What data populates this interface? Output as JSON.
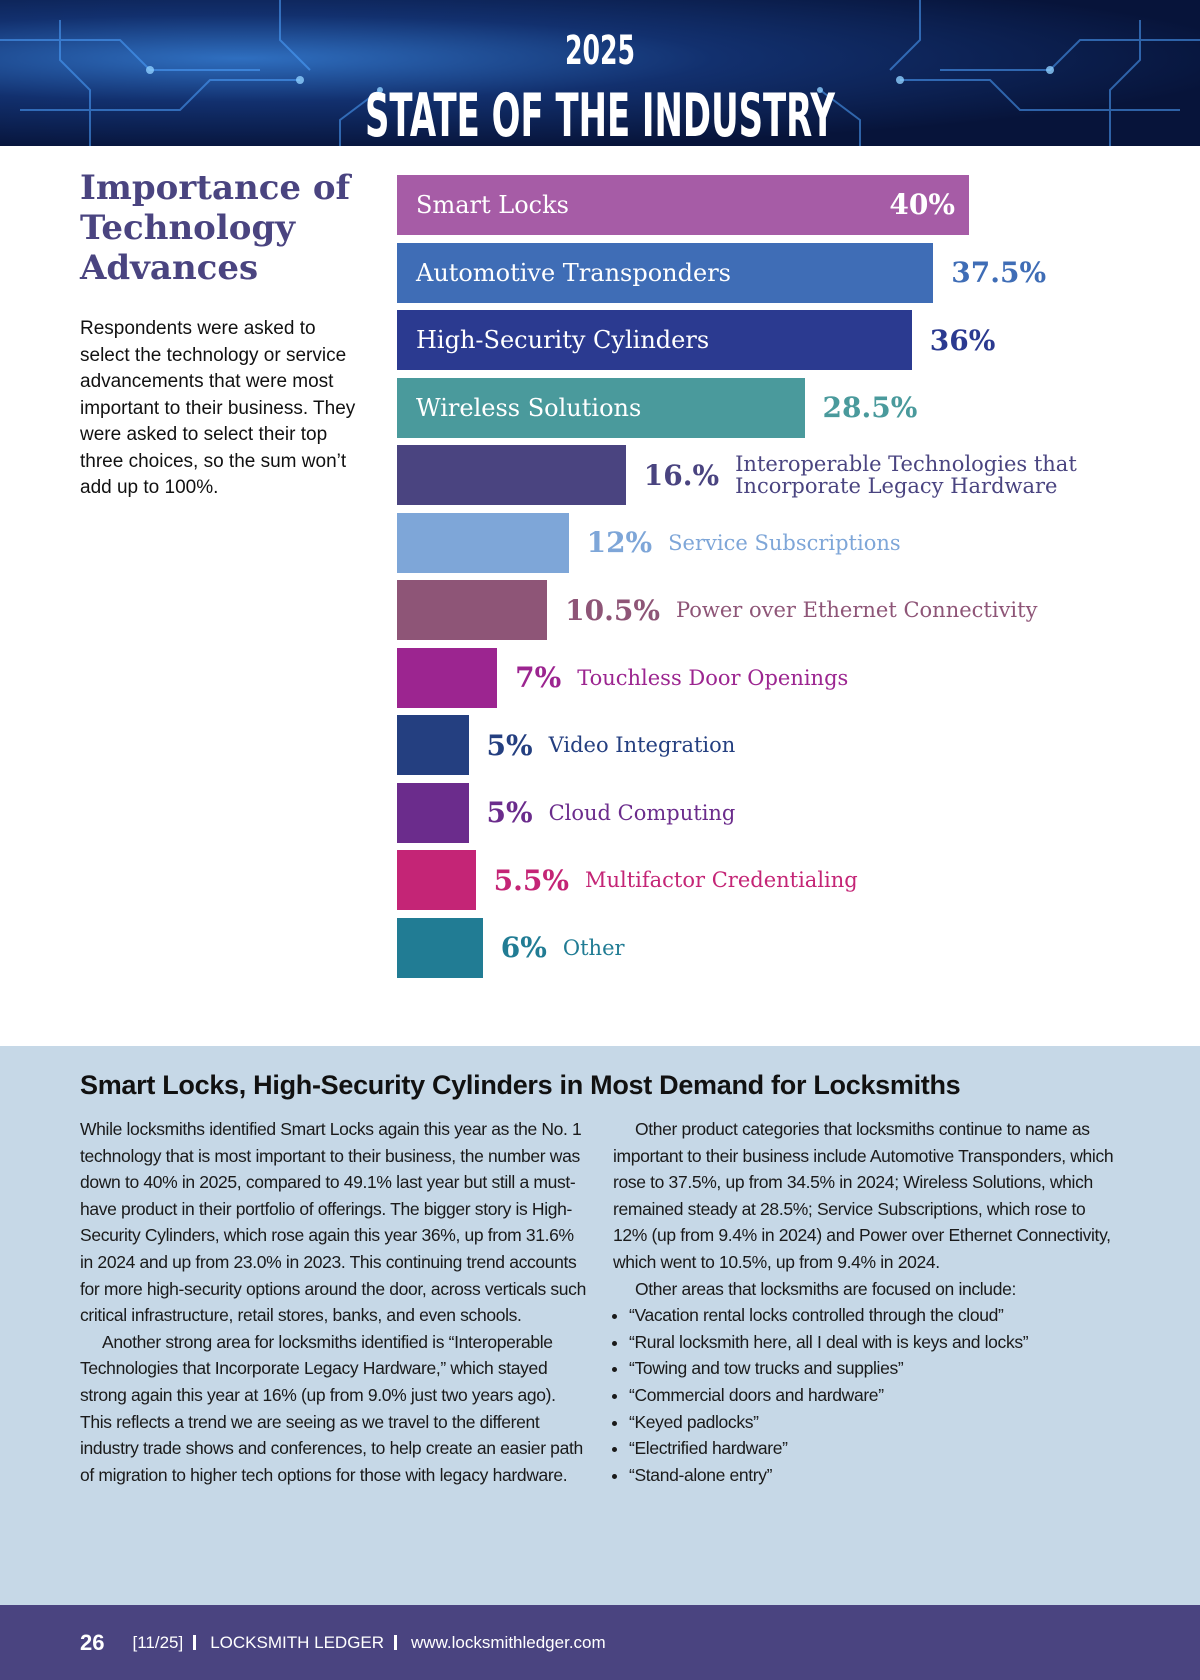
{
  "header": {
    "year": "2025",
    "title": "STATE OF THE INDUSTRY"
  },
  "sidebar": {
    "title": "Importance of Technology Advances",
    "description": "Respondents were asked to select the technology or service advancements that were most important to their business. They were asked to select their top three choices, so the sum won’t add up to 100%."
  },
  "chart_data": {
    "type": "bar",
    "orientation": "horizontal",
    "categories": [
      "Smart Locks",
      "Automotive Transponders",
      "High-Security Cylinders",
      "Wireless Solutions",
      "Interoperable Technologies that Incorporate Legacy Hardware",
      "Service Subscriptions",
      "Power over Ethernet Connectivity",
      "Touchless Door Openings",
      "Video Integration",
      "Cloud Computing",
      "Multifactor Credentialing",
      "Other"
    ],
    "values": [
      40,
      37.5,
      36,
      28.5,
      16,
      12,
      10.5,
      7,
      5,
      5,
      5.5,
      6
    ],
    "value_labels": [
      "40%",
      "37.5%",
      "36%",
      "28.5%",
      "16.%",
      "12%",
      "10.5%",
      "7%",
      "5%",
      "5%",
      "5.5%",
      "6%"
    ],
    "colors": [
      "#a65ca6",
      "#3f6db6",
      "#2b3a90",
      "#4a9a9c",
      "#4a4480",
      "#7ea6d8",
      "#8e5577",
      "#9c2590",
      "#243f80",
      "#6b2c8c",
      "#c42576",
      "#217c94"
    ]
  },
  "article": {
    "heading": "Smart Locks, High-Security Cylinders in Most Demand for Locksmiths",
    "left_paragraphs": [
      "While locksmiths identified Smart Locks again this year as the No. 1 technology that is most important to their business, the number was down to 40% in 2025, compared to 49.1% last year but still a must-have product in their portfolio of offerings. The bigger story is High-Security Cylinders, which rose again this year 36%, up from 31.6% in 2024 and up from 23.0% in 2023. This continuing trend accounts for more high-security options around the door, across verticals such critical infrastructure, retail stores, banks, and even schools.",
      "Another strong area for locksmiths identified is “Interoperable Technologies that Incorporate Legacy Hardware,” which stayed strong again this year at 16% (up from 9.0% just two years ago). This reflects a trend we are seeing as we travel to the different industry trade shows and conferences, to help create an easier path of migration to higher tech options for those with legacy hardware."
    ],
    "right_paragraphs": [
      "Other product categories that locksmiths continue to name as important to their business include Automotive Transponders, which rose to 37.5%, up from 34.5% in 2024; Wireless Solutions, which remained steady at 28.5%; Service Subscriptions, which rose to 12% (up from 9.4% in 2024) and Power over Ethernet Connectivity, which went to 10.5%, up from 9.4% in 2024.",
      "Other areas that locksmiths are focused on include:"
    ],
    "quotes": [
      "“Vacation rental locks controlled through the cloud”",
      "“Rural locksmith here, all I deal with is keys and locks”",
      "“Towing and tow trucks and supplies”",
      "“Commercial doors and hardware”",
      "“Keyed padlocks”",
      "“Electrified hardware”",
      "“Stand-alone entry”"
    ]
  },
  "footer": {
    "page": "26",
    "issue": "[11/25]",
    "publication": "LOCKSMITH LEDGER",
    "url": "www.locksmithledger.com"
  }
}
